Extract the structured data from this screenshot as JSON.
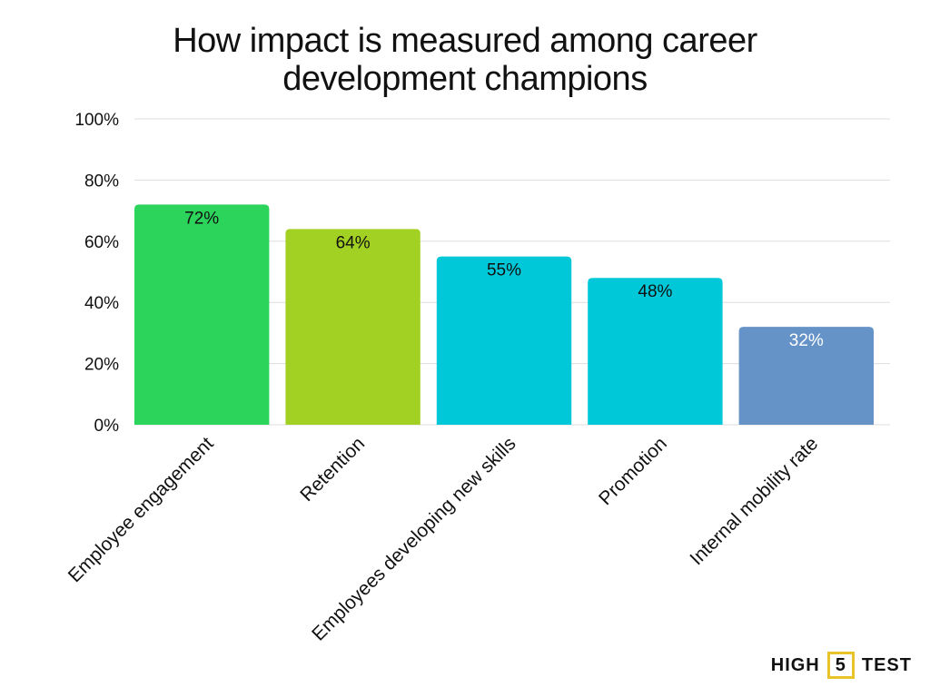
{
  "chart_data": {
    "type": "bar",
    "title_lines": [
      "How impact is measured among career",
      "development champions"
    ],
    "categories": [
      "Employee engagement",
      "Retention",
      "Employees developing new skills",
      "Promotion",
      "Internal mobility rate"
    ],
    "values": [
      72,
      64,
      55,
      48,
      32
    ],
    "data_labels": [
      "72%",
      "64%",
      "55%",
      "48%",
      "32%"
    ],
    "colors": [
      "#2dd45c",
      "#a3d123",
      "#00c8d9",
      "#00c8d9",
      "#6693c7"
    ],
    "label_colors": [
      "#111111",
      "#111111",
      "#111111",
      "#111111",
      "#ffffff"
    ],
    "ylim": [
      0,
      100
    ],
    "yticks": [
      0,
      20,
      40,
      60,
      80,
      100
    ],
    "ytick_labels": [
      "0%",
      "20%",
      "40%",
      "60%",
      "80%",
      "100%"
    ],
    "grid": true,
    "grid_color": "#dddddd",
    "legend": "none"
  },
  "logo": {
    "left": "HIGH",
    "number": "5",
    "right": "TEST"
  }
}
